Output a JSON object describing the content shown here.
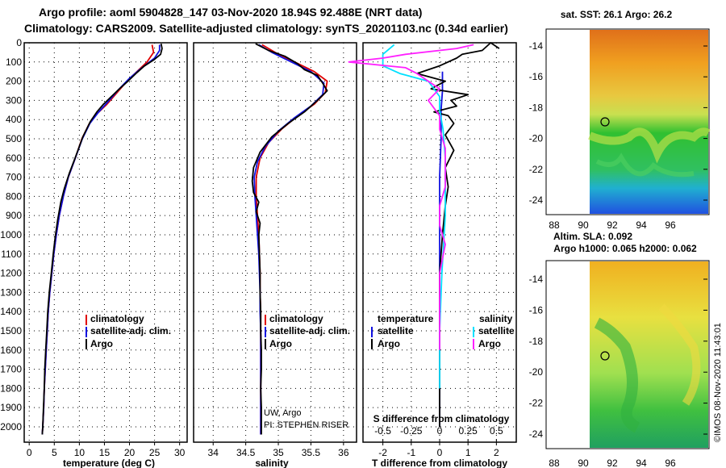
{
  "header": {
    "line1": "Argo profile: aoml 5904828_147 03-Nov-2020 18.94S 92.488E (NRT data)",
    "line2": "Climatology: CARS2009. Satellite-adjusted climatology: synTS_20201103.nc (0.34d earlier)"
  },
  "colors": {
    "climatology": "#e00000",
    "satellite": "#1010e0",
    "argo": "#000000",
    "satellite_salinity": "#00e0ff",
    "argo_salinity_diff": "#ff20ff"
  },
  "chart_data": [
    {
      "type": "line",
      "name": "temperature-profile",
      "xlabel": "temperature (deg C)",
      "ylabel": "depth",
      "xlim": [
        -1,
        31.5
      ],
      "ylim": [
        2080,
        0
      ],
      "xticks": [
        0,
        5,
        10,
        15,
        20,
        25,
        30
      ],
      "yticks": [
        0,
        100,
        200,
        300,
        400,
        500,
        600,
        700,
        800,
        900,
        1000,
        1100,
        1200,
        1300,
        1400,
        1500,
        1600,
        1700,
        1800,
        1900,
        2000
      ],
      "legend": [
        "climatology",
        "satellite-adj. clim.",
        "Argo"
      ],
      "series": [
        {
          "name": "climatology",
          "points": [
            [
              24.5,
              10
            ],
            [
              24.8,
              50
            ],
            [
              23.5,
              100
            ],
            [
              21.5,
              150
            ],
            [
              19.5,
              200
            ],
            [
              17.5,
              260
            ],
            [
              15.5,
              320
            ],
            [
              13.5,
              370
            ],
            [
              12.0,
              420
            ],
            [
              10.5,
              500
            ],
            [
              9.2,
              600
            ],
            [
              7.8,
              700
            ],
            [
              6.8,
              800
            ],
            [
              6.0,
              900
            ],
            [
              5.4,
              1000
            ],
            [
              4.9,
              1100
            ],
            [
              4.5,
              1200
            ],
            [
              4.1,
              1300
            ],
            [
              3.8,
              1400
            ],
            [
              3.6,
              1500
            ],
            [
              3.4,
              1600
            ],
            [
              3.2,
              1700
            ],
            [
              3.0,
              1800
            ],
            [
              2.9,
              1900
            ],
            [
              2.7,
              2000
            ],
            [
              2.6,
              2040
            ]
          ]
        },
        {
          "name": "satellite-adj. clim.",
          "points": [
            [
              26.0,
              10
            ],
            [
              26.0,
              40
            ],
            [
              25.0,
              80
            ],
            [
              22.0,
              140
            ],
            [
              19.8,
              190
            ],
            [
              17.6,
              250
            ],
            [
              15.6,
              310
            ],
            [
              13.7,
              365
            ],
            [
              12.1,
              420
            ],
            [
              10.6,
              500
            ],
            [
              9.2,
              600
            ],
            [
              7.8,
              700
            ],
            [
              6.8,
              800
            ],
            [
              6.0,
              900
            ],
            [
              5.4,
              1000
            ],
            [
              4.9,
              1100
            ],
            [
              4.5,
              1200
            ],
            [
              4.1,
              1300
            ],
            [
              3.8,
              1400
            ],
            [
              3.6,
              1500
            ],
            [
              3.4,
              1600
            ],
            [
              3.2,
              1700
            ],
            [
              3.0,
              1800
            ],
            [
              2.9,
              1900
            ],
            [
              2.7,
              2000
            ],
            [
              2.6,
              2040
            ]
          ]
        },
        {
          "name": "Argo",
          "points": [
            [
              26.3,
              5
            ],
            [
              26.5,
              30
            ],
            [
              26.2,
              60
            ],
            [
              24.8,
              90
            ],
            [
              23.0,
              120
            ],
            [
              21.5,
              155
            ],
            [
              19.9,
              195
            ],
            [
              18.2,
              235
            ],
            [
              16.4,
              280
            ],
            [
              14.8,
              320
            ],
            [
              13.5,
              360
            ],
            [
              12.2,
              410
            ],
            [
              10.7,
              490
            ],
            [
              9.3,
              590
            ],
            [
              8.0,
              680
            ],
            [
              7.0,
              760
            ],
            [
              6.3,
              830
            ],
            [
              5.7,
              920
            ],
            [
              5.2,
              1010
            ],
            [
              4.8,
              1100
            ],
            [
              4.4,
              1200
            ],
            [
              4.0,
              1300
            ],
            [
              3.7,
              1400
            ],
            [
              3.5,
              1500
            ],
            [
              3.3,
              1600
            ],
            [
              3.1,
              1700
            ],
            [
              3.0,
              1800
            ],
            [
              2.85,
              1900
            ],
            [
              2.7,
              2000
            ],
            [
              2.6,
              2040
            ]
          ]
        }
      ]
    },
    {
      "type": "line",
      "name": "salinity-profile",
      "xlabel": "salinity",
      "xlim": [
        33.7,
        36.2
      ],
      "ylim": [
        2080,
        0
      ],
      "xticks": [
        34,
        34.5,
        35,
        35.5,
        36
      ],
      "legend": [
        "climatology",
        "satellite-adj. clim.",
        "Argo"
      ],
      "annotations": [
        "UW, Argo",
        "PI: STEPHEN RISER"
      ],
      "series": [
        {
          "name": "climatology",
          "points": [
            [
              34.75,
              10
            ],
            [
              34.95,
              50
            ],
            [
              35.25,
              100
            ],
            [
              35.55,
              150
            ],
            [
              35.75,
              200
            ],
            [
              35.72,
              260
            ],
            [
              35.55,
              320
            ],
            [
              35.3,
              380
            ],
            [
              35.05,
              450
            ],
            [
              34.85,
              520
            ],
            [
              34.72,
              600
            ],
            [
              34.66,
              700
            ],
            [
              34.66,
              800
            ],
            [
              34.68,
              900
            ],
            [
              34.7,
              1000
            ],
            [
              34.71,
              1100
            ],
            [
              34.72,
              1200
            ],
            [
              34.72,
              1300
            ],
            [
              34.73,
              1400
            ],
            [
              34.73,
              1500
            ],
            [
              34.73,
              1600
            ],
            [
              34.73,
              1700
            ],
            [
              34.73,
              1800
            ],
            [
              34.73,
              1900
            ],
            [
              34.73,
              2000
            ],
            [
              34.73,
              2040
            ]
          ]
        },
        {
          "name": "satellite-adj. clim.",
          "points": [
            [
              34.7,
              10
            ],
            [
              34.9,
              50
            ],
            [
              35.2,
              100
            ],
            [
              35.5,
              150
            ],
            [
              35.7,
              210
            ],
            [
              35.68,
              270
            ],
            [
              35.5,
              330
            ],
            [
              35.25,
              390
            ],
            [
              35.0,
              460
            ],
            [
              34.8,
              540
            ],
            [
              34.68,
              620
            ],
            [
              34.63,
              700
            ],
            [
              34.64,
              800
            ],
            [
              34.66,
              900
            ],
            [
              34.68,
              1000
            ],
            [
              34.7,
              1100
            ],
            [
              34.71,
              1200
            ],
            [
              34.72,
              1300
            ],
            [
              34.72,
              1400
            ],
            [
              34.73,
              1500
            ],
            [
              34.73,
              1600
            ],
            [
              34.73,
              1700
            ],
            [
              34.73,
              1800
            ],
            [
              34.73,
              1900
            ],
            [
              34.73,
              2000
            ],
            [
              34.73,
              2040
            ]
          ]
        },
        {
          "name": "Argo",
          "points": [
            [
              34.65,
              5
            ],
            [
              34.85,
              40
            ],
            [
              35.1,
              70
            ],
            [
              35.3,
              110
            ],
            [
              35.4,
              140
            ],
            [
              35.6,
              170
            ],
            [
              35.68,
              210
            ],
            [
              35.75,
              250
            ],
            [
              35.6,
              300
            ],
            [
              35.4,
              360
            ],
            [
              35.15,
              420
            ],
            [
              34.9,
              490
            ],
            [
              34.72,
              570
            ],
            [
              34.62,
              650
            ],
            [
              34.6,
              720
            ],
            [
              34.62,
              780
            ],
            [
              34.7,
              830
            ],
            [
              34.66,
              880
            ],
            [
              34.72,
              940
            ],
            [
              34.7,
              1000
            ],
            [
              34.71,
              1100
            ],
            [
              34.72,
              1200
            ],
            [
              34.72,
              1300
            ],
            [
              34.73,
              1400
            ],
            [
              34.73,
              1500
            ],
            [
              34.74,
              1600
            ],
            [
              34.74,
              1700
            ],
            [
              34.73,
              1800
            ],
            [
              34.74,
              1900
            ],
            [
              34.74,
              2000
            ],
            [
              34.74,
              2040
            ]
          ]
        }
      ]
    },
    {
      "type": "line",
      "name": "difference-profile",
      "xlabel": "T difference from climatology",
      "top_label": "S difference from climatology",
      "xlim": [
        -2.7,
        2.7
      ],
      "ylim": [
        2080,
        0
      ],
      "xticks": [
        -2,
        -1,
        0,
        1,
        2
      ],
      "sticks": [
        -0.5,
        -0.25,
        0,
        0.25,
        0.5
      ],
      "legend_temperature": {
        "title": "temperature",
        "items": [
          "satellite",
          "Argo"
        ]
      },
      "legend_salinity": {
        "title": "salinity",
        "items": [
          "satellite",
          "Argo"
        ]
      },
      "series": [
        {
          "name": "temperature satellite",
          "points": [
            [
              0.1,
              150
            ],
            [
              0.1,
              250
            ],
            [
              0.05,
              350
            ],
            [
              0.05,
              500
            ],
            [
              0.0,
              700
            ],
            [
              0.0,
              1000
            ],
            [
              0.0,
              1400
            ],
            [
              0.0,
              1800
            ],
            [
              0.0,
              2000
            ]
          ]
        },
        {
          "name": "temperature Argo",
          "points": [
            [
              2.1,
              30
            ],
            [
              1.8,
              0
            ],
            [
              1.5,
              40
            ],
            [
              0.8,
              60
            ],
            [
              0.6,
              80
            ],
            [
              0.0,
              120
            ],
            [
              -0.8,
              160
            ],
            [
              0.2,
              200
            ],
            [
              -0.3,
              240
            ],
            [
              1.0,
              270
            ],
            [
              0.4,
              300
            ],
            [
              0.6,
              330
            ],
            [
              -0.2,
              360
            ],
            [
              0.3,
              380
            ],
            [
              0.5,
              420
            ],
            [
              0.2,
              480
            ],
            [
              0.5,
              560
            ],
            [
              0.2,
              650
            ],
            [
              0.3,
              750
            ],
            [
              0.2,
              850
            ],
            [
              0.1,
              1000
            ],
            [
              0.0,
              1200
            ],
            [
              0.0,
              1500
            ],
            [
              0.0,
              1800
            ],
            [
              0.0,
              2000
            ]
          ]
        },
        {
          "name": "salinity satellite",
          "points": [
            [
              -0.4,
              10
            ],
            [
              -0.5,
              60
            ],
            [
              -0.5,
              120
            ],
            [
              -0.35,
              160
            ],
            [
              -0.1,
              200
            ],
            [
              0.0,
              280
            ],
            [
              0.0,
              350
            ],
            [
              0.03,
              450
            ],
            [
              0.05,
              600
            ],
            [
              0.05,
              750
            ],
            [
              0.05,
              900
            ],
            [
              0.02,
              1200
            ],
            [
              0.0,
              1500
            ],
            [
              0.0,
              1800
            ]
          ]
        },
        {
          "name": "salinity Argo",
          "points": [
            [
              0.3,
              10
            ],
            [
              0.15,
              30
            ],
            [
              -0.3,
              60
            ],
            [
              -0.5,
              80
            ],
            [
              -0.8,
              100
            ],
            [
              -0.3,
              130
            ],
            [
              -0.2,
              160
            ],
            [
              -0.1,
              200
            ],
            [
              0.0,
              240
            ],
            [
              -0.1,
              300
            ],
            [
              0.0,
              380
            ],
            [
              0.0,
              450
            ],
            [
              0.05,
              550
            ],
            [
              0.05,
              650
            ],
            [
              0.05,
              750
            ],
            [
              0.0,
              850
            ],
            [
              0.0,
              950
            ],
            [
              0.05,
              1050
            ],
            [
              0.0,
              1200
            ],
            [
              0.0,
              1400
            ],
            [
              0.0,
              1600
            ]
          ]
        }
      ]
    }
  ],
  "maps": {
    "sst": {
      "title": "sat. SST: 26.1  Argo: 26.2",
      "yticks": [
        "-14",
        "-16",
        "-18",
        "-20",
        "-22",
        "-24"
      ],
      "xticks": [
        "88",
        "90",
        "92",
        "94",
        "96"
      ]
    },
    "sla": {
      "title1": "Altim. SLA: 0.092",
      "title2": "Argo h1000: 0.065 h2000: 0.062",
      "yticks": [
        "-14",
        "-16",
        "-18",
        "-20",
        "-22",
        "-24"
      ],
      "xticks": [
        "88",
        "90",
        "92",
        "94",
        "96"
      ]
    }
  },
  "footer": {
    "credit": "©IMOS 08-Nov-2020 11:43:01"
  }
}
